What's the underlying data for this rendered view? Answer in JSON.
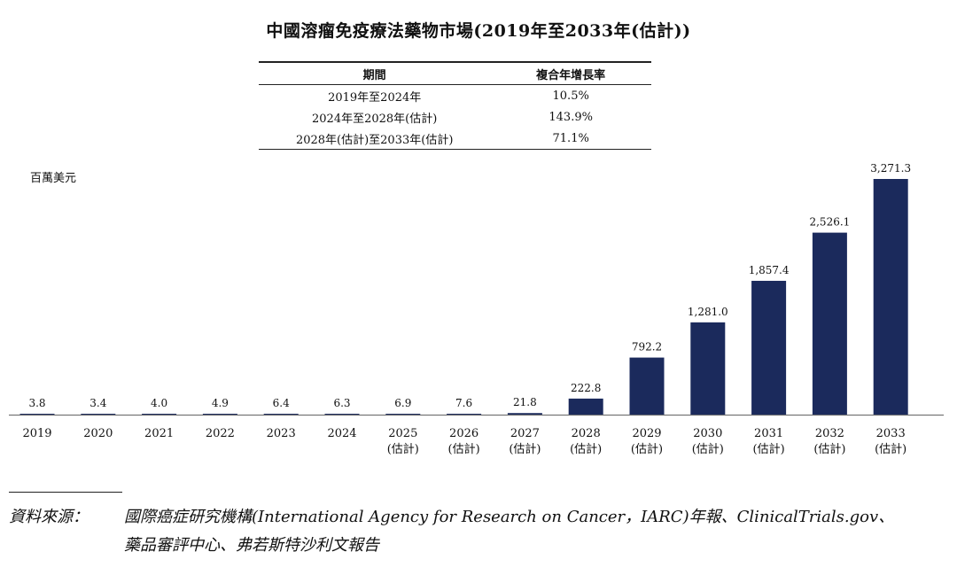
{
  "title": "中國溶瘤免疫療法藥物市場(2019年至2033年(估計))",
  "cagr_table": {
    "headers": [
      "期間",
      "複合年增長率"
    ],
    "rows": [
      {
        "period": "2019年至2024年",
        "rate": "10.5%"
      },
      {
        "period": "2024年至2028年(估計)",
        "rate": "143.9%"
      },
      {
        "period": "2028年(估計)至2033年(估計)",
        "rate": "71.1%"
      }
    ]
  },
  "unit_label": "百萬美元",
  "chart_data": {
    "type": "bar",
    "title": "中國溶瘤免疫療法藥物市場(2019年至2033年(估計))",
    "ylabel": "百萬美元",
    "xlabel": "",
    "categories": [
      "2019",
      "2020",
      "2021",
      "2022",
      "2023",
      "2024",
      "2025",
      "2026",
      "2027",
      "2028",
      "2029",
      "2030",
      "2031",
      "2032",
      "2033"
    ],
    "sublabels": [
      "",
      "",
      "",
      "",
      "",
      "",
      "(估計)",
      "(估計)",
      "(估計)",
      "(估計)",
      "(估計)",
      "(估計)",
      "(估計)",
      "(估計)",
      "(估計)"
    ],
    "values": [
      3.8,
      3.4,
      4.0,
      4.9,
      6.4,
      6.3,
      6.9,
      7.6,
      21.8,
      222.8,
      792.2,
      1281.0,
      1857.4,
      2526.1,
      3271.3
    ],
    "value_labels": [
      "3.8",
      "3.4",
      "4.0",
      "4.9",
      "6.4",
      "6.3",
      "6.9",
      "7.6",
      "21.8",
      "222.8",
      "792.2",
      "1,281.0",
      "1,857.4",
      "2,526.1",
      "3,271.3"
    ],
    "ylim": [
      0,
      3271.3
    ],
    "grid": false,
    "bar_color": "#1b2a5c"
  },
  "source": {
    "label": "資料來源：",
    "line1": "國際癌症研究機構(International Agency for Research on Cancer，IARC)年報、ClinicalTrials.gov、",
    "line2": "藥品審評中心、弗若斯特沙利文報告"
  }
}
